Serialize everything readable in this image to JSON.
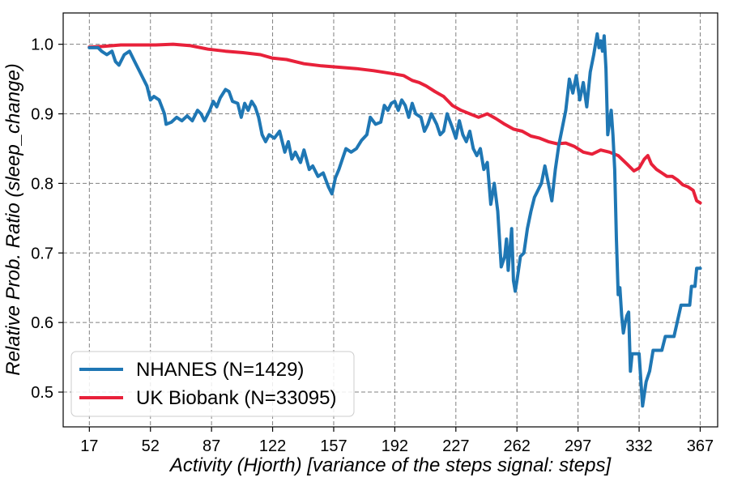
{
  "chart_data": {
    "type": "line",
    "xlabel": "Activity (Hjorth) [variance of the steps signal: steps]",
    "ylabel": "Relative Prob. Ratio (sleep_change)",
    "xlim": [
      2,
      377
    ],
    "ylim": [
      0.45,
      1.045
    ],
    "xticks": [
      17,
      52,
      87,
      122,
      157,
      192,
      227,
      262,
      297,
      332,
      367
    ],
    "yticks": [
      0.5,
      0.6,
      0.7,
      0.8,
      0.9,
      1.0
    ],
    "ytick_labels": [
      "0.5",
      "0.6",
      "0.7",
      "0.8",
      "0.9",
      "1.0"
    ],
    "grid": true,
    "legend_position": "lower-left",
    "series": [
      {
        "name": "NHANES (N=1429)",
        "color": "#1f77b4",
        "points": [
          [
            17,
            0.995
          ],
          [
            22,
            0.995
          ],
          [
            24,
            0.99
          ],
          [
            27,
            0.985
          ],
          [
            30,
            0.99
          ],
          [
            32,
            0.975
          ],
          [
            34,
            0.97
          ],
          [
            37,
            0.985
          ],
          [
            40,
            0.99
          ],
          [
            43,
            0.975
          ],
          [
            46,
            0.96
          ],
          [
            48,
            0.95
          ],
          [
            50,
            0.94
          ],
          [
            52,
            0.92
          ],
          [
            54,
            0.925
          ],
          [
            57,
            0.92
          ],
          [
            60,
            0.9
          ],
          [
            61,
            0.885
          ],
          [
            64,
            0.888
          ],
          [
            67,
            0.895
          ],
          [
            70,
            0.89
          ],
          [
            73,
            0.897
          ],
          [
            76,
            0.89
          ],
          [
            79,
            0.905
          ],
          [
            81,
            0.9
          ],
          [
            83,
            0.89
          ],
          [
            86,
            0.905
          ],
          [
            88,
            0.918
          ],
          [
            90,
            0.91
          ],
          [
            92,
            0.923
          ],
          [
            95,
            0.935
          ],
          [
            97,
            0.932
          ],
          [
            99,
            0.918
          ],
          [
            102,
            0.915
          ],
          [
            104,
            0.895
          ],
          [
            106,
            0.915
          ],
          [
            108,
            0.905
          ],
          [
            110,
            0.918
          ],
          [
            112,
            0.91
          ],
          [
            114,
            0.895
          ],
          [
            116,
            0.87
          ],
          [
            118,
            0.86
          ],
          [
            120,
            0.87
          ],
          [
            123,
            0.865
          ],
          [
            126,
            0.875
          ],
          [
            129,
            0.845
          ],
          [
            131,
            0.86
          ],
          [
            133,
            0.835
          ],
          [
            135,
            0.845
          ],
          [
            138,
            0.83
          ],
          [
            140,
            0.848
          ],
          [
            143,
            0.82
          ],
          [
            145,
            0.825
          ],
          [
            148,
            0.81
          ],
          [
            151,
            0.815
          ],
          [
            154,
            0.795
          ],
          [
            156,
            0.785
          ],
          [
            158,
            0.808
          ],
          [
            160,
            0.82
          ],
          [
            162,
            0.835
          ],
          [
            164,
            0.85
          ],
          [
            167,
            0.845
          ],
          [
            170,
            0.85
          ],
          [
            173,
            0.862
          ],
          [
            176,
            0.87
          ],
          [
            178,
            0.895
          ],
          [
            181,
            0.885
          ],
          [
            184,
            0.888
          ],
          [
            186,
            0.912
          ],
          [
            188,
            0.905
          ],
          [
            190,
            0.915
          ],
          [
            192,
            0.918
          ],
          [
            194,
            0.905
          ],
          [
            196,
            0.92
          ],
          [
            198,
            0.912
          ],
          [
            200,
            0.895
          ],
          [
            202,
            0.915
          ],
          [
            204,
            0.9
          ],
          [
            207,
            0.895
          ],
          [
            209,
            0.875
          ],
          [
            211,
            0.885
          ],
          [
            213,
            0.9
          ],
          [
            216,
            0.885
          ],
          [
            218,
            0.87
          ],
          [
            220,
            0.875
          ],
          [
            222,
            0.9
          ],
          [
            225,
            0.88
          ],
          [
            227,
            0.865
          ],
          [
            229,
            0.89
          ],
          [
            231,
            0.87
          ],
          [
            233,
            0.86
          ],
          [
            235,
            0.875
          ],
          [
            237,
            0.85
          ],
          [
            239,
            0.84
          ],
          [
            241,
            0.85
          ],
          [
            243,
            0.82
          ],
          [
            245,
            0.83
          ],
          [
            247,
            0.77
          ],
          [
            249,
            0.8
          ],
          [
            251,
            0.76
          ],
          [
            253,
            0.68
          ],
          [
            255,
            0.695
          ],
          [
            256,
            0.72
          ],
          [
            257,
            0.675
          ],
          [
            259,
            0.735
          ],
          [
            260,
            0.66
          ],
          [
            261,
            0.645
          ],
          [
            262,
            0.66
          ],
          [
            264,
            0.695
          ],
          [
            266,
            0.7
          ],
          [
            268,
            0.735
          ],
          [
            270,
            0.76
          ],
          [
            272,
            0.78
          ],
          [
            274,
            0.79
          ],
          [
            276,
            0.8
          ],
          [
            278,
            0.825
          ],
          [
            280,
            0.8
          ],
          [
            282,
            0.775
          ],
          [
            284,
            0.82
          ],
          [
            286,
            0.855
          ],
          [
            288,
            0.88
          ],
          [
            290,
            0.905
          ],
          [
            292,
            0.95
          ],
          [
            294,
            0.93
          ],
          [
            296,
            0.955
          ],
          [
            298,
            0.92
          ],
          [
            300,
            0.945
          ],
          [
            302,
            0.91
          ],
          [
            304,
            0.96
          ],
          [
            306,
            0.985
          ],
          [
            308,
            1.015
          ],
          [
            309,
            0.995
          ],
          [
            310,
            1.005
          ],
          [
            311,
            0.99
          ],
          [
            312,
            1.012
          ],
          [
            313,
            0.965
          ],
          [
            314,
            0.87
          ],
          [
            316,
            0.905
          ],
          [
            317,
            0.87
          ],
          [
            318,
            0.82
          ],
          [
            319,
            0.72
          ],
          [
            320,
            0.64
          ],
          [
            321,
            0.65
          ],
          [
            322,
            0.61
          ],
          [
            323,
            0.585
          ],
          [
            324,
            0.6
          ],
          [
            325,
            0.61
          ],
          [
            326,
            0.615
          ],
          [
            327,
            0.53
          ],
          [
            328,
            0.555
          ],
          [
            332,
            0.555
          ],
          [
            334,
            0.48
          ],
          [
            336,
            0.515
          ],
          [
            338,
            0.53
          ],
          [
            340,
            0.56
          ],
          [
            345,
            0.56
          ],
          [
            347,
            0.58
          ],
          [
            352,
            0.58
          ],
          [
            356,
            0.625
          ],
          [
            361,
            0.625
          ],
          [
            362,
            0.652
          ],
          [
            364,
            0.652
          ],
          [
            365,
            0.678
          ],
          [
            367,
            0.678
          ]
        ]
      },
      {
        "name": "UK Biobank (N=33095)",
        "color": "#e8213a",
        "points": [
          [
            17,
            0.996
          ],
          [
            25,
            0.997
          ],
          [
            35,
            0.999
          ],
          [
            45,
            0.999
          ],
          [
            55,
            0.999
          ],
          [
            65,
            1.0
          ],
          [
            75,
            0.998
          ],
          [
            85,
            0.993
          ],
          [
            95,
            0.99
          ],
          [
            105,
            0.988
          ],
          [
            115,
            0.985
          ],
          [
            122,
            0.98
          ],
          [
            130,
            0.978
          ],
          [
            140,
            0.972
          ],
          [
            150,
            0.969
          ],
          [
            160,
            0.967
          ],
          [
            170,
            0.965
          ],
          [
            180,
            0.962
          ],
          [
            190,
            0.958
          ],
          [
            197,
            0.955
          ],
          [
            202,
            0.948
          ],
          [
            206,
            0.945
          ],
          [
            210,
            0.94
          ],
          [
            215,
            0.932
          ],
          [
            220,
            0.925
          ],
          [
            225,
            0.912
          ],
          [
            230,
            0.905
          ],
          [
            235,
            0.9
          ],
          [
            240,
            0.895
          ],
          [
            245,
            0.9
          ],
          [
            250,
            0.893
          ],
          [
            255,
            0.885
          ],
          [
            260,
            0.878
          ],
          [
            265,
            0.875
          ],
          [
            270,
            0.868
          ],
          [
            275,
            0.865
          ],
          [
            280,
            0.86
          ],
          [
            285,
            0.857
          ],
          [
            290,
            0.858
          ],
          [
            295,
            0.853
          ],
          [
            300,
            0.845
          ],
          [
            305,
            0.842
          ],
          [
            310,
            0.848
          ],
          [
            315,
            0.845
          ],
          [
            320,
            0.84
          ],
          [
            325,
            0.828
          ],
          [
            329,
            0.818
          ],
          [
            332,
            0.822
          ],
          [
            335,
            0.835
          ],
          [
            337,
            0.84
          ],
          [
            339,
            0.828
          ],
          [
            342,
            0.82
          ],
          [
            345,
            0.815
          ],
          [
            348,
            0.81
          ],
          [
            351,
            0.81
          ],
          [
            354,
            0.805
          ],
          [
            357,
            0.798
          ],
          [
            360,
            0.795
          ],
          [
            363,
            0.79
          ],
          [
            365,
            0.775
          ],
          [
            367,
            0.772
          ]
        ]
      }
    ]
  }
}
